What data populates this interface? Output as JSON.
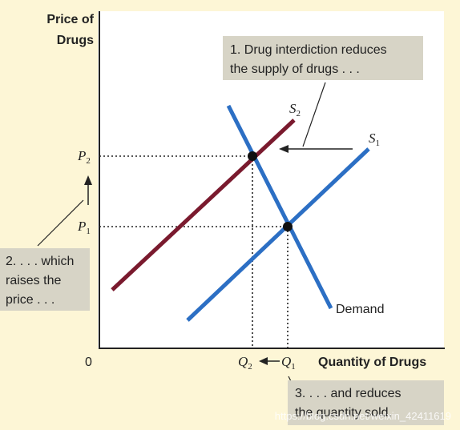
{
  "axes": {
    "y_title_line1": "Price of",
    "y_title_line2": "Drugs",
    "x_title": "Quantity of Drugs",
    "origin": "0"
  },
  "price_labels": {
    "p2_main": "P",
    "p2_sub": "2",
    "p1_main": "P",
    "p1_sub": "1"
  },
  "quantity_labels": {
    "q2_main": "Q",
    "q2_sub": "2",
    "q1_main": "Q",
    "q1_sub": "1"
  },
  "curves": {
    "s1_main": "S",
    "s1_sub": "1",
    "s2_main": "S",
    "s2_sub": "2",
    "demand_label": "Demand"
  },
  "callouts": {
    "one_line1": "1. Drug interdiction reduces",
    "one_line2": "the supply of drugs . . .",
    "two_line1": "2. . . . which",
    "two_line2": "raises the",
    "two_line3": "price . . .",
    "three_line1": "3. . . . and reduces",
    "three_line2": "the quantity sold."
  },
  "watermark": "https://blog.csdn.net/weixin_42411619",
  "colors": {
    "background": "#fdf6d6",
    "panel": "#ffffff",
    "supply1": "#2c6fc4",
    "demand": "#2c6fc4",
    "supply2": "#7a1a2e",
    "callout_box": "#d7d4c6"
  }
}
